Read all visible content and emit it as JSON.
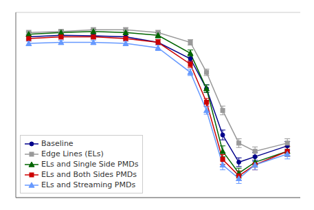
{
  "chart_data": {
    "type": "line",
    "x": [
      1200,
      1000,
      800,
      600,
      400,
      200,
      100,
      0,
      -100,
      -200,
      -400
    ],
    "series": [
      {
        "name": "Baseline",
        "color": "#00008B",
        "marker": "circle",
        "values": [
          56.5,
          56.8,
          56.7,
          56.5,
          55.5,
          52.5,
          47.0,
          38.5,
          33.5,
          34.5,
          36.5
        ],
        "yerr": [
          0.4,
          0.4,
          0.4,
          0.4,
          0.5,
          0.6,
          0.7,
          0.9,
          0.8,
          0.8,
          0.8
        ]
      },
      {
        "name": "Edge Lines (ELs)",
        "color": "#999999",
        "marker": "square",
        "values": [
          57.3,
          57.5,
          57.8,
          57.8,
          57.3,
          55.5,
          50.0,
          43.0,
          37.0,
          35.5,
          37.0
        ],
        "yerr": [
          0.4,
          0.4,
          0.4,
          0.4,
          0.4,
          0.5,
          0.6,
          0.8,
          0.8,
          0.8,
          0.8
        ]
      },
      {
        "name": "ELs and Single Side PMDs",
        "color": "#006400",
        "marker": "triangle",
        "values": [
          57.0,
          57.3,
          57.5,
          57.3,
          56.8,
          53.5,
          47.0,
          35.5,
          31.5,
          33.5,
          35.5
        ],
        "yerr": [
          0.4,
          0.4,
          0.4,
          0.4,
          0.5,
          0.6,
          0.7,
          1.0,
          0.9,
          0.9,
          0.9
        ]
      },
      {
        "name": "ELs and Both Sides PMDs",
        "color": "#CC0000",
        "marker": "square",
        "values": [
          56.2,
          56.5,
          56.5,
          56.2,
          55.5,
          51.5,
          44.5,
          34.0,
          31.0,
          33.0,
          35.5
        ],
        "yerr": [
          0.4,
          0.4,
          0.4,
          0.4,
          0.5,
          0.6,
          0.7,
          0.9,
          0.9,
          0.9,
          0.9
        ]
      },
      {
        "name": "ELs and Streaming PMDs",
        "color": "#6699FF",
        "marker": "triangle",
        "values": [
          55.3,
          55.5,
          55.5,
          55.3,
          54.5,
          50.0,
          43.0,
          33.0,
          30.5,
          33.0,
          35.0
        ],
        "yerr": [
          0.4,
          0.4,
          0.4,
          0.4,
          0.5,
          0.6,
          0.7,
          0.9,
          0.9,
          0.9,
          0.9
        ]
      }
    ],
    "xlim": [
      1280,
      -480
    ],
    "xticks": [],
    "ylim": [
      27,
      61
    ],
    "yticks": [
      30,
      35,
      40,
      45,
      50,
      55,
      60
    ],
    "grid": "y",
    "legend": "lower left",
    "tick_labels": false
  }
}
